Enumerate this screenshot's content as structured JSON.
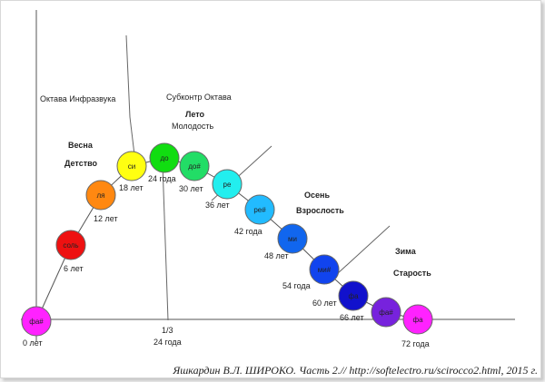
{
  "labels": {
    "octave_infrasound": "Октава Инфразвука",
    "suboctave": "Субконтр Октава",
    "summer": "Лето",
    "youth": "Молодость",
    "spring": "Весна",
    "childhood": "Детство",
    "autumn": "Осень",
    "maturity": "Взрослость",
    "winter": "Зима",
    "old_age": "Старость",
    "third_fraction": "1/3",
    "third_age": "24 года"
  },
  "caption": "Яшкардин В.Л. ШИРОКО. Часть 2.//  http://softelectro.ru/scirocco2.html, 2015 г.",
  "notes": [
    {
      "name": "фа#",
      "age": "0 лет",
      "color": "#ff22ff"
    },
    {
      "name": "соль",
      "age": "6 лет",
      "color": "#ee1111"
    },
    {
      "name": "ля",
      "age": "12 лет",
      "color": "#ff8811"
    },
    {
      "name": "си",
      "age": "18 лет",
      "color": "#ffff11"
    },
    {
      "name": "до",
      "age": "24 года",
      "color": "#11dd11"
    },
    {
      "name": "до#",
      "age": "30 лет",
      "color": "#22dd66"
    },
    {
      "name": "ре",
      "age": "36 лет",
      "color": "#22eeee"
    },
    {
      "name": "ре#",
      "age": "42 года",
      "color": "#22bbff"
    },
    {
      "name": "ми",
      "age": "48 лет",
      "color": "#1166ee"
    },
    {
      "name": "ми#",
      "age": "54 года",
      "color": "#1144ee"
    },
    {
      "name": "фа",
      "age": "60 лет",
      "color": "#1111cc"
    },
    {
      "name": "фа#",
      "age": "66 лет",
      "color": "#7722dd"
    },
    {
      "name": "фа",
      "age": "72 года",
      "color": "#ff22ff"
    }
  ]
}
